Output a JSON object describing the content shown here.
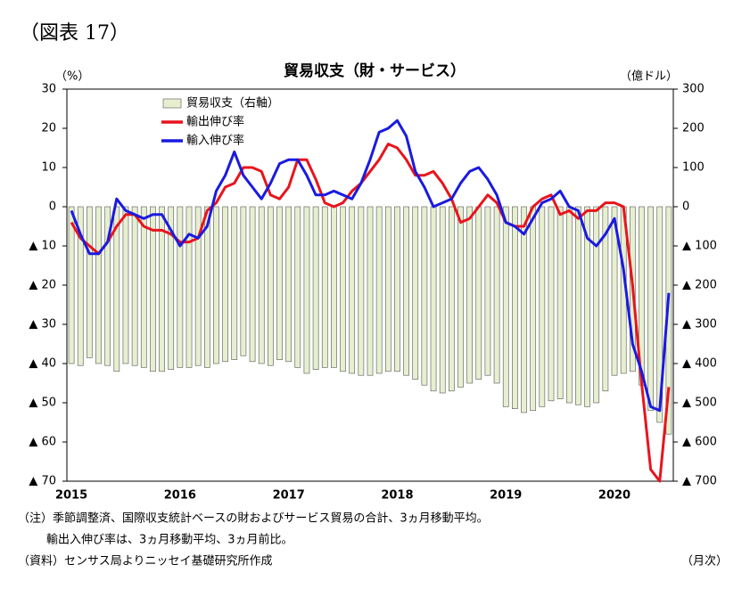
{
  "page_title": "（図表 17）",
  "chart_data": {
    "type": "bar_line",
    "title": "貿易収支（財・サービス）",
    "y_unit": "（%）",
    "y2_unit": "（億ドル）",
    "categories": [
      "2015",
      null,
      null,
      null,
      null,
      null,
      null,
      null,
      null,
      null,
      null,
      null,
      "2016",
      null,
      null,
      null,
      null,
      null,
      null,
      null,
      null,
      null,
      null,
      null,
      "2017",
      null,
      null,
      null,
      null,
      null,
      null,
      null,
      null,
      null,
      null,
      null,
      "2018",
      null,
      null,
      null,
      null,
      null,
      null,
      null,
      null,
      null,
      null,
      null,
      "2019",
      null,
      null,
      null,
      null,
      null,
      null,
      null,
      null,
      null,
      null,
      null,
      "2020",
      null,
      null,
      null,
      null,
      null,
      null
    ],
    "series": [
      {
        "name": "貿易収支（右軸）",
        "type": "bar",
        "axis": "y2",
        "color": "#e6efcf",
        "values": [
          -400,
          -405,
          -385,
          -400,
          -405,
          -420,
          -400,
          -405,
          -410,
          -420,
          -420,
          -415,
          -410,
          -410,
          -405,
          -410,
          -400,
          -395,
          -390,
          -380,
          -395,
          -400,
          -405,
          -390,
          -395,
          -410,
          -425,
          -415,
          -410,
          -410,
          -420,
          -425,
          -430,
          -430,
          -425,
          -420,
          -420,
          -430,
          -440,
          -455,
          -470,
          -475,
          -470,
          -460,
          -450,
          -440,
          -430,
          -450,
          -510,
          -515,
          -525,
          -520,
          -510,
          -495,
          -490,
          -500,
          -505,
          -510,
          -500,
          -470,
          -430,
          -425,
          -420,
          -455,
          -520,
          -550,
          -580
        ]
      },
      {
        "name": "輸出伸び率",
        "type": "line",
        "color": "#e8141c",
        "values": [
          -4,
          -8,
          -10,
          -12,
          -9,
          -5,
          -2,
          -2,
          -5,
          -6,
          -6,
          -7,
          -9,
          -9,
          -8,
          -1,
          1,
          5,
          6,
          10,
          10,
          9,
          3,
          2,
          5,
          12,
          12,
          7,
          1,
          0,
          1,
          4,
          6,
          9,
          12,
          16,
          15,
          12,
          8,
          8,
          9,
          6,
          2,
          -4,
          -3,
          0,
          3,
          1,
          -4,
          -5,
          -5,
          0,
          2,
          3,
          -2,
          -1,
          -3,
          -1,
          -1,
          1,
          1,
          0,
          -20,
          -45,
          -67,
          -70,
          -46
        ]
      },
      {
        "name": "輸入伸び率",
        "type": "line",
        "color": "#1a1ae0",
        "values": [
          -1,
          -7,
          -12,
          -12,
          -9,
          2,
          -1,
          -2,
          -3,
          -2,
          -2,
          -6,
          -10,
          -7,
          -8,
          -5,
          4,
          8,
          14,
          8,
          5,
          2,
          6,
          11,
          12,
          12,
          8,
          3,
          3,
          4,
          3,
          2,
          6,
          12,
          19,
          20,
          22,
          18,
          9,
          5,
          0,
          1,
          2,
          6,
          9,
          10,
          7,
          3,
          -4,
          -5,
          -7,
          -3,
          1,
          2,
          4,
          0,
          -1,
          -8,
          -10,
          -7,
          -3,
          -16,
          -35,
          -42,
          -51,
          -52,
          -22
        ]
      }
    ],
    "ylim": [
      -70,
      30
    ],
    "yticks": [
      {
        "value": -70,
        "label": "▲ 70"
      },
      {
        "value": -60,
        "label": "▲ 60"
      },
      {
        "value": -50,
        "label": "▲ 50"
      },
      {
        "value": -40,
        "label": "▲ 40"
      },
      {
        "value": -30,
        "label": "▲ 30"
      },
      {
        "value": -20,
        "label": "▲ 20"
      },
      {
        "value": -10,
        "label": "▲ 10"
      },
      0,
      10,
      20,
      30
    ],
    "y2lim": [
      -700,
      300
    ],
    "y2ticks": [
      {
        "value": -700,
        "label": "▲ 700"
      },
      {
        "value": -600,
        "label": "▲ 600"
      },
      {
        "value": -500,
        "label": "▲ 500"
      },
      {
        "value": -400,
        "label": "▲ 400"
      },
      {
        "value": -300,
        "label": "▲ 300"
      },
      {
        "value": -200,
        "label": "▲ 200"
      },
      {
        "value": -100,
        "label": "▲ 100"
      },
      0,
      100,
      200,
      300
    ],
    "grid": false,
    "legend": "upper left"
  },
  "notes": [
    "（注）季節調整済、国際収支統計ベースの財およびサービス貿易の合計、3ヵ月移動平均。",
    "輸出入伸び率は、3ヵ月移動平均、3ヵ月前比。",
    "（資料）センサス局よりニッセイ基礎研究所作成"
  ],
  "frequency": "（月次）"
}
